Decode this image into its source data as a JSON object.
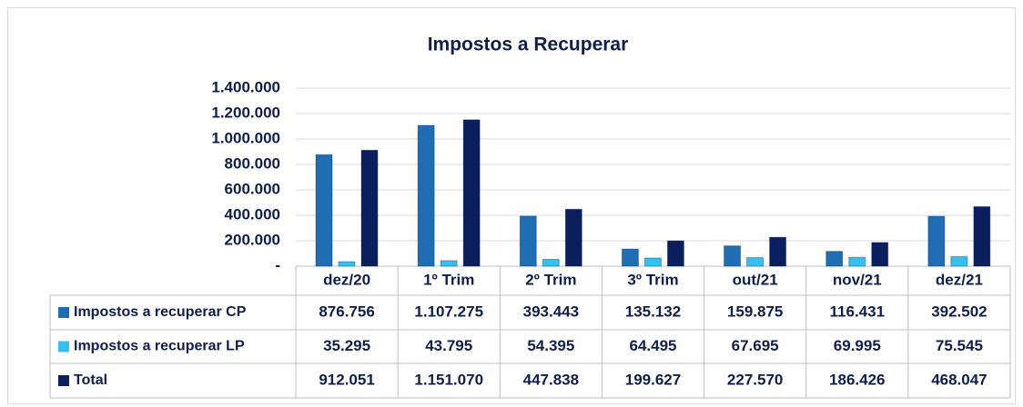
{
  "chart_data": {
    "type": "bar",
    "title": "Impostos a Recuperar",
    "categories": [
      "dez/20",
      "1º Trim",
      "2º Trim",
      "3º Trim",
      "out/21",
      "nov/21",
      "dez/21"
    ],
    "series": [
      {
        "name": "Impostos a recuperar CP",
        "color": "#1f6db3",
        "values": [
          876756,
          1107275,
          393443,
          135132,
          159875,
          116431,
          392502
        ],
        "value_labels": [
          "876.756",
          "1.107.275",
          "393.443",
          "135.132",
          "159.875",
          "116.431",
          "392.502"
        ]
      },
      {
        "name": "Impostos a recuperar LP",
        "color": "#35c0ee",
        "values": [
          35295,
          43795,
          54395,
          64495,
          67695,
          69995,
          75545
        ],
        "value_labels": [
          "35.295",
          "43.795",
          "54.395",
          "64.495",
          "67.695",
          "69.995",
          "75.545"
        ]
      },
      {
        "name": "Total",
        "color": "#0b1f5e",
        "values": [
          912051,
          1151070,
          447838,
          199627,
          227570,
          186426,
          468047
        ],
        "value_labels": [
          "912.051",
          "1.151.070",
          "447.838",
          "199.627",
          "227.570",
          "186.426",
          "468.047"
        ]
      }
    ],
    "ylim": [
      0,
      1400000
    ],
    "yticks": [
      {
        "value": 0,
        "label": "-"
      },
      {
        "value": 200000,
        "label": "200.000"
      },
      {
        "value": 400000,
        "label": "400.000"
      },
      {
        "value": 600000,
        "label": "600.000"
      },
      {
        "value": 800000,
        "label": "800.000"
      },
      {
        "value": 1000000,
        "label": "1.000.000"
      },
      {
        "value": 1200000,
        "label": "1.200.000"
      },
      {
        "value": 1400000,
        "label": "1.400.000"
      }
    ],
    "grid": true
  }
}
